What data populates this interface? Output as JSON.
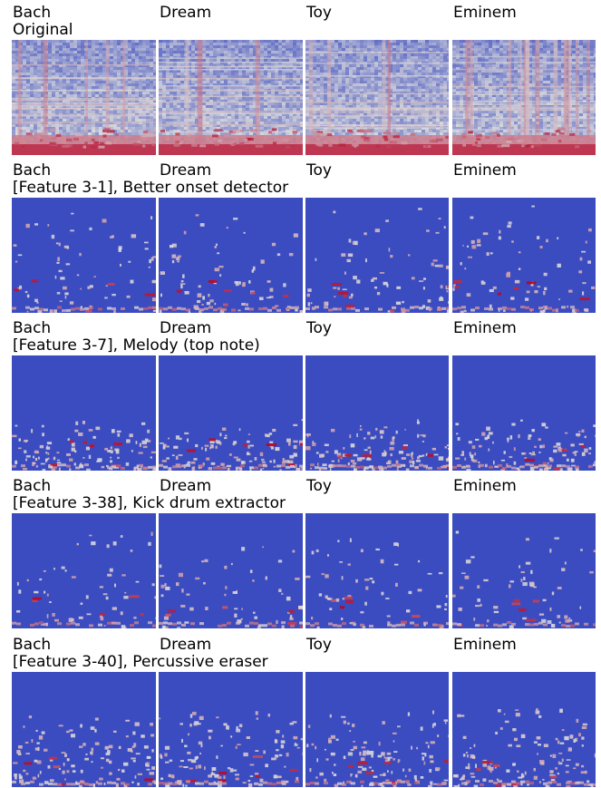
{
  "songs": [
    "Bach",
    "Dream",
    "Toy",
    "Eminem"
  ],
  "rows": [
    {
      "title": "Original",
      "kind": "original"
    },
    {
      "title": "[Feature 3-1], Better onset detector",
      "kind": "onset"
    },
    {
      "title": "[Feature 3-7], Melody (top note)",
      "kind": "melody"
    },
    {
      "title": "[Feature 3-38], Kick drum extractor",
      "kind": "kick"
    },
    {
      "title": "[Feature 3-40], Percussive eraser",
      "kind": "percussive"
    }
  ],
  "colors": {
    "low": "#3b4cc0",
    "mid": "#dddcdc",
    "high": "#b40426"
  }
}
